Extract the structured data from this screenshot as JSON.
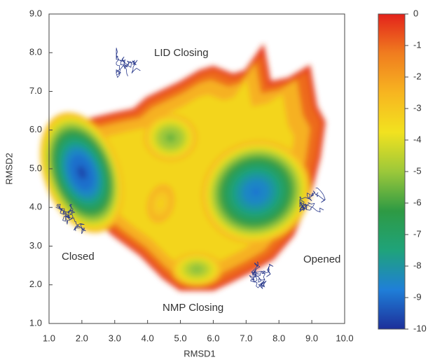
{
  "chart_data": {
    "type": "contour",
    "xlabel": "RMSD1",
    "ylabel": "RMSD2",
    "xlim": [
      1,
      10
    ],
    "ylim": [
      1,
      9
    ],
    "xticks": [
      {
        "value": 1,
        "label": "1.0"
      },
      {
        "value": 2,
        "label": "2.0"
      },
      {
        "value": 3,
        "label": "3.0"
      },
      {
        "value": 4,
        "label": "4.0"
      },
      {
        "value": 5,
        "label": "5.0"
      },
      {
        "value": 6,
        "label": "6.0"
      },
      {
        "value": 7,
        "label": "7.0"
      },
      {
        "value": 8,
        "label": "8.0"
      },
      {
        "value": 9,
        "label": "9.0"
      },
      {
        "value": 10,
        "label": "10.0"
      }
    ],
    "yticks": [
      {
        "value": 1,
        "label": "1.0"
      },
      {
        "value": 2,
        "label": "2.0"
      },
      {
        "value": 3,
        "label": "3.0"
      },
      {
        "value": 4,
        "label": "4.0"
      },
      {
        "value": 5,
        "label": "5.0"
      },
      {
        "value": 6,
        "label": "6.0"
      },
      {
        "value": 7,
        "label": "7.0"
      },
      {
        "value": 8,
        "label": "8.0"
      },
      {
        "value": 9,
        "label": "9.0"
      }
    ],
    "clim": [
      -10,
      0
    ],
    "cticks": [
      0,
      -1,
      -2,
      -3,
      -4,
      -5,
      -6,
      -7,
      -8,
      -9,
      -10
    ],
    "colormap": [
      "#1d2f9a",
      "#1f7fd8",
      "#1fa37a",
      "#2e9a44",
      "#9cc83a",
      "#f2e21f",
      "#f7b520",
      "#f07d1f",
      "#e3221b"
    ],
    "minima": [
      {
        "x": 2.0,
        "y": 4.9,
        "value": -9.6
      },
      {
        "x": 7.3,
        "y": 4.4,
        "value": -8.9
      },
      {
        "x": 4.7,
        "y": 5.8,
        "value": -5.6
      },
      {
        "x": 5.5,
        "y": 2.4,
        "value": -5.3
      },
      {
        "x": 4.4,
        "y": 4.1,
        "value": -3.3
      }
    ],
    "annotations": [
      "LID Closing",
      "Closed",
      "Opened",
      "NMP Closing"
    ]
  }
}
